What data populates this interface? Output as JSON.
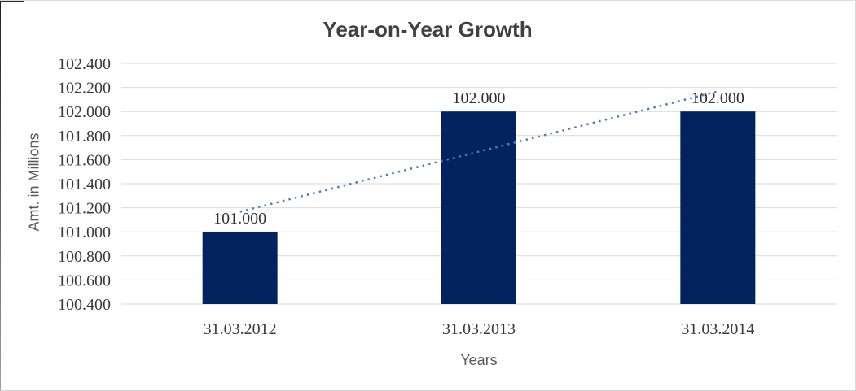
{
  "chart_data": {
    "type": "bar",
    "title": "Year-on-Year Growth",
    "xlabel": "Years",
    "ylabel": "Amt. in Millions",
    "categories": [
      "31.03.2012",
      "31.03.2013",
      "31.03.2014"
    ],
    "values": [
      101.0,
      102.0,
      102.0
    ],
    "data_labels": [
      "101.000",
      "102.000",
      "102.000"
    ],
    "ylim": [
      100.4,
      102.4
    ],
    "ytick_step": 0.2,
    "ytick_labels": [
      "100.400",
      "100.600",
      "100.800",
      "101.000",
      "101.200",
      "101.400",
      "101.600",
      "101.800",
      "102.000",
      "102.200",
      "102.400"
    ],
    "grid": "horizontal",
    "legend": "none",
    "trendline": {
      "type": "linear",
      "style": "dotted",
      "color": "#4A7EBB",
      "start_value": 101.167,
      "end_value": 102.167
    },
    "colors": {
      "bar": "#03235F",
      "gridline": "#D9D9D9",
      "title_text": "#404040",
      "tick_text": "#3A3A3A",
      "axis_title_text": "#595959"
    }
  }
}
